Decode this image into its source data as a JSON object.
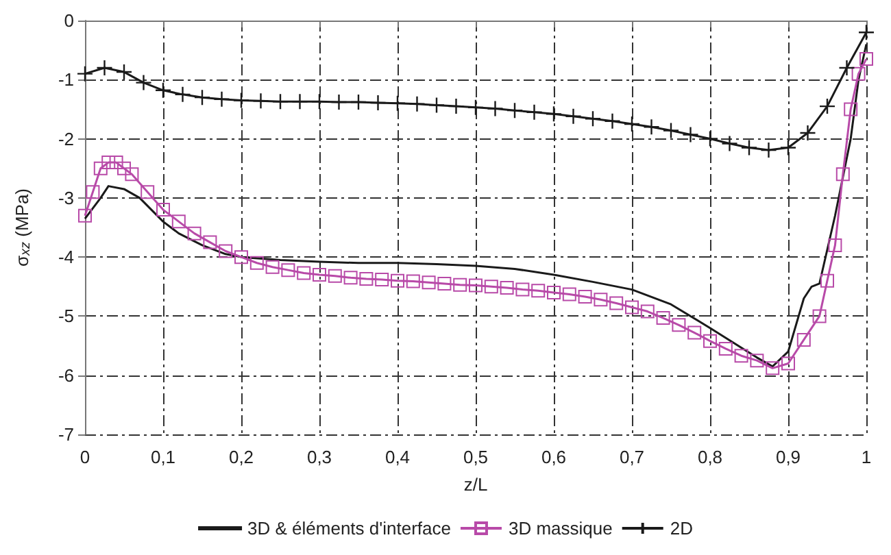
{
  "chart_data": {
    "type": "line",
    "xlabel": "z/L",
    "ylabel": "σ$_{xz}$ (MPa)",
    "xlim": [
      0,
      1
    ],
    "xticks": [
      0,
      {
        "value": 0.1,
        "label": "0,1"
      },
      {
        "value": 0.2,
        "label": "0,2"
      },
      {
        "value": 0.3,
        "label": "0,3"
      },
      {
        "value": 0.4,
        "label": "0,4"
      },
      {
        "value": 0.5,
        "label": "0,5"
      },
      {
        "value": 0.6,
        "label": "0,6"
      },
      {
        "value": 0.7,
        "label": "0,7"
      },
      {
        "value": 0.8,
        "label": "0,8"
      },
      {
        "value": 0.9,
        "label": "0,9"
      },
      1
    ],
    "ylim": [
      -7,
      0
    ],
    "yticks": [
      -7,
      -6,
      -5,
      -4,
      -3,
      -2,
      -1,
      0
    ],
    "grid": true,
    "legend": "bottom",
    "line_style": "solid",
    "series": [
      {
        "name": "3D & éléments d'interface",
        "color": "#1a1a1a",
        "marker": "none",
        "x": [
          0,
          0.02,
          0.03,
          0.05,
          0.07,
          0.1,
          0.12,
          0.15,
          0.18,
          0.2,
          0.25,
          0.3,
          0.35,
          0.4,
          0.45,
          0.5,
          0.55,
          0.6,
          0.65,
          0.7,
          0.75,
          0.8,
          0.83,
          0.86,
          0.88,
          0.9,
          0.92,
          0.93,
          0.94,
          0.96,
          0.98,
          0.99,
          1
        ],
        "values": [
          -3.35,
          -3.0,
          -2.8,
          -2.85,
          -3.0,
          -3.4,
          -3.6,
          -3.8,
          -3.95,
          -4.0,
          -4.05,
          -4.08,
          -4.1,
          -4.1,
          -4.12,
          -4.15,
          -4.2,
          -4.3,
          -4.42,
          -4.55,
          -4.8,
          -5.2,
          -5.45,
          -5.7,
          -5.85,
          -5.6,
          -4.7,
          -4.5,
          -4.45,
          -3.3,
          -2.0,
          -1.0,
          -0.4
        ]
      },
      {
        "name": "3D massique",
        "color": "#b84aa8",
        "marker": "square",
        "x": [
          0,
          0.01,
          0.02,
          0.03,
          0.04,
          0.05,
          0.06,
          0.08,
          0.1,
          0.12,
          0.14,
          0.16,
          0.18,
          0.2,
          0.22,
          0.24,
          0.26,
          0.28,
          0.3,
          0.32,
          0.34,
          0.36,
          0.38,
          0.4,
          0.42,
          0.44,
          0.46,
          0.48,
          0.5,
          0.52,
          0.54,
          0.56,
          0.58,
          0.6,
          0.62,
          0.64,
          0.66,
          0.68,
          0.7,
          0.72,
          0.74,
          0.76,
          0.78,
          0.8,
          0.82,
          0.84,
          0.86,
          0.88,
          0.9,
          0.92,
          0.94,
          0.95,
          0.96,
          0.97,
          0.98,
          0.99,
          1
        ],
        "values": [
          -3.3,
          -2.9,
          -2.5,
          -2.4,
          -2.4,
          -2.5,
          -2.6,
          -2.9,
          -3.2,
          -3.4,
          -3.6,
          -3.75,
          -3.9,
          -4.0,
          -4.1,
          -4.17,
          -4.22,
          -4.27,
          -4.3,
          -4.32,
          -4.35,
          -4.37,
          -4.38,
          -4.4,
          -4.41,
          -4.43,
          -4.45,
          -4.47,
          -4.48,
          -4.5,
          -4.52,
          -4.55,
          -4.57,
          -4.6,
          -4.63,
          -4.67,
          -4.72,
          -4.78,
          -4.85,
          -4.92,
          -5.03,
          -5.15,
          -5.28,
          -5.42,
          -5.55,
          -5.67,
          -5.75,
          -5.88,
          -5.8,
          -5.4,
          -5.0,
          -4.4,
          -3.8,
          -2.6,
          -1.5,
          -0.9,
          -0.65
        ]
      },
      {
        "name": "2D",
        "color": "#1a1a1a",
        "marker": "cross",
        "x": [
          0,
          0.025,
          0.05,
          0.075,
          0.1,
          0.125,
          0.15,
          0.175,
          0.2,
          0.225,
          0.25,
          0.275,
          0.3,
          0.325,
          0.35,
          0.375,
          0.4,
          0.425,
          0.45,
          0.475,
          0.5,
          0.525,
          0.55,
          0.575,
          0.6,
          0.625,
          0.65,
          0.675,
          0.7,
          0.725,
          0.75,
          0.775,
          0.8,
          0.825,
          0.85,
          0.875,
          0.9,
          0.925,
          0.95,
          0.975,
          1
        ],
        "values": [
          -0.9,
          -0.8,
          -0.87,
          -1.05,
          -1.18,
          -1.25,
          -1.3,
          -1.33,
          -1.35,
          -1.36,
          -1.37,
          -1.37,
          -1.37,
          -1.38,
          -1.38,
          -1.39,
          -1.4,
          -1.41,
          -1.43,
          -1.45,
          -1.47,
          -1.49,
          -1.52,
          -1.55,
          -1.58,
          -1.62,
          -1.66,
          -1.7,
          -1.75,
          -1.8,
          -1.86,
          -1.93,
          -2.0,
          -2.08,
          -2.15,
          -2.19,
          -2.15,
          -1.9,
          -1.45,
          -0.8,
          -0.2
        ]
      }
    ]
  }
}
